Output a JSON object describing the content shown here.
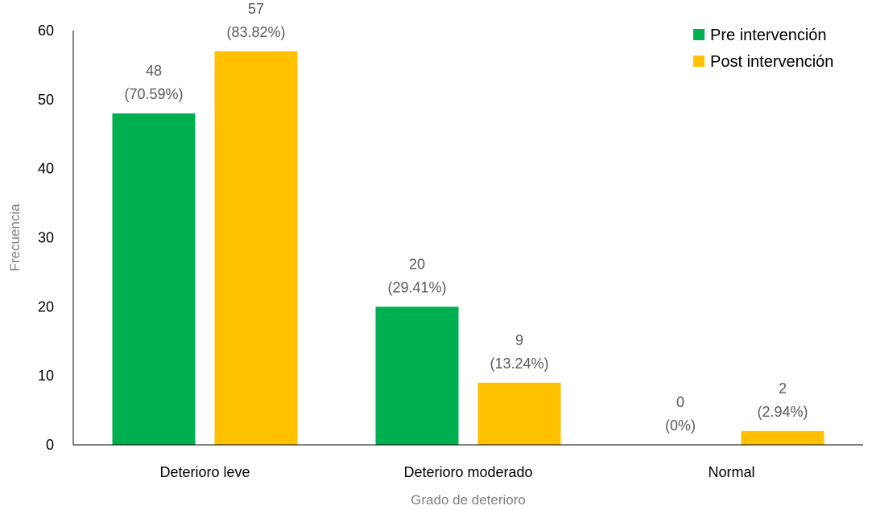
{
  "chart_data": {
    "type": "bar",
    "title": "",
    "xlabel": "Grado de deterioro",
    "ylabel": "Frecuencia",
    "ylim": [
      0,
      60
    ],
    "yticks": [
      0,
      10,
      20,
      30,
      40,
      50,
      60
    ],
    "grid": false,
    "legend_position": "top-right",
    "categories": [
      "Deterioro leve",
      "Deterioro moderado",
      "Normal"
    ],
    "series": [
      {
        "name": "Pre intervención",
        "color": "#00b050",
        "values": [
          48,
          20,
          0
        ],
        "percent_labels": [
          "(70.59%)",
          "(29.41%)",
          "(0%)"
        ]
      },
      {
        "name": "Post intervención",
        "color": "#ffc000",
        "values": [
          57,
          9,
          2
        ],
        "percent_labels": [
          "(83.82%)",
          "(13.24%)",
          "(2.94%)"
        ]
      }
    ]
  }
}
